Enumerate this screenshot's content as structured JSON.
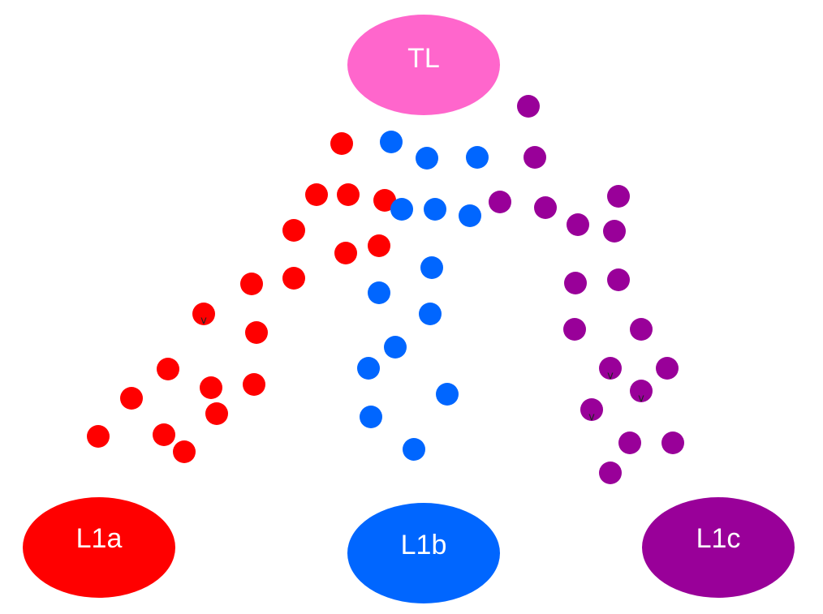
{
  "colors": {
    "tl": "#ff66cc",
    "l1a": "#ff0000",
    "l1b": "#0066ff",
    "l1c": "#990099",
    "background": "#ffffff"
  },
  "nodes": {
    "tl": {
      "label": "TL"
    },
    "l1a": {
      "label": "L1a"
    },
    "l1b": {
      "label": "L1b"
    },
    "l1c": {
      "label": "L1c"
    }
  },
  "dot_mark": "v"
}
